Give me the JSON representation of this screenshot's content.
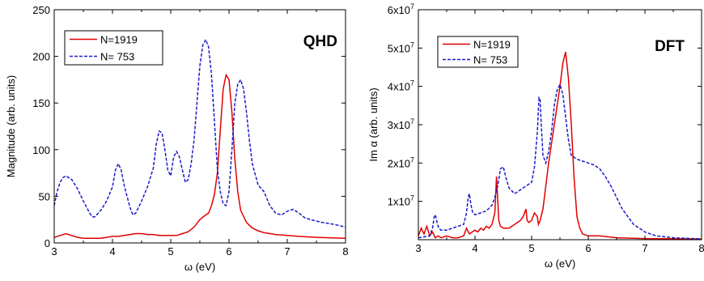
{
  "chart_data": [
    {
      "type": "line",
      "tag": "QHD",
      "xlabel": "ω (eV)",
      "ylabel": "Magnitude (arb. units)",
      "xlim": [
        3,
        8
      ],
      "ylim": [
        0,
        250
      ],
      "xticks": [
        "3",
        "4",
        "5",
        "6",
        "7",
        "8"
      ],
      "yticks": [
        "0",
        "50",
        "100",
        "150",
        "200",
        "250"
      ],
      "legend_position": "top-left",
      "series": [
        {
          "name": "N=1919",
          "color": "#e00000",
          "style": "solid",
          "x": [
            3.0,
            3.1,
            3.2,
            3.3,
            3.4,
            3.5,
            3.6,
            3.7,
            3.8,
            3.9,
            4.0,
            4.1,
            4.2,
            4.3,
            4.4,
            4.5,
            4.6,
            4.7,
            4.8,
            4.9,
            5.0,
            5.1,
            5.2,
            5.3,
            5.4,
            5.5,
            5.6,
            5.65,
            5.7,
            5.75,
            5.8,
            5.85,
            5.9,
            5.95,
            6.0,
            6.05,
            6.1,
            6.15,
            6.2,
            6.3,
            6.4,
            6.5,
            6.6,
            6.8,
            7.0,
            7.2,
            7.5,
            8.0
          ],
          "y": [
            6,
            8,
            10,
            8,
            6,
            5,
            5,
            5,
            5,
            6,
            7,
            7,
            8,
            9,
            10,
            10,
            9,
            9,
            8,
            8,
            8,
            8,
            10,
            12,
            17,
            25,
            30,
            32,
            40,
            52,
            75,
            120,
            165,
            180,
            175,
            140,
            90,
            55,
            35,
            22,
            16,
            13,
            11,
            9,
            8,
            7,
            6,
            5
          ]
        },
        {
          "name": "N= 753",
          "color": "#1a1acc",
          "style": "dashed",
          "x": [
            3.0,
            3.05,
            3.1,
            3.15,
            3.2,
            3.3,
            3.4,
            3.5,
            3.6,
            3.65,
            3.7,
            3.8,
            3.9,
            4.0,
            4.05,
            4.1,
            4.15,
            4.2,
            4.3,
            4.35,
            4.4,
            4.5,
            4.6,
            4.7,
            4.75,
            4.8,
            4.85,
            4.9,
            4.95,
            5.0,
            5.05,
            5.1,
            5.15,
            5.2,
            5.25,
            5.3,
            5.35,
            5.4,
            5.45,
            5.5,
            5.55,
            5.6,
            5.65,
            5.7,
            5.75,
            5.8,
            5.85,
            5.9,
            5.95,
            6.0,
            6.05,
            6.1,
            6.15,
            6.2,
            6.25,
            6.3,
            6.35,
            6.4,
            6.5,
            6.6,
            6.7,
            6.8,
            6.9,
            7.0,
            7.1,
            7.2,
            7.3,
            7.4,
            7.6,
            7.8,
            8.0
          ],
          "y": [
            40,
            55,
            65,
            70,
            72,
            68,
            58,
            45,
            33,
            28,
            28,
            35,
            45,
            60,
            78,
            85,
            78,
            62,
            38,
            30,
            32,
            45,
            60,
            80,
            105,
            120,
            118,
            100,
            78,
            72,
            92,
            98,
            92,
            78,
            65,
            68,
            85,
            110,
            150,
            190,
            212,
            218,
            210,
            180,
            130,
            80,
            55,
            42,
            40,
            55,
            100,
            150,
            170,
            175,
            165,
            140,
            110,
            85,
            62,
            55,
            40,
            32,
            30,
            34,
            36,
            32,
            27,
            25,
            22,
            20,
            17
          ]
        }
      ]
    },
    {
      "type": "line",
      "tag": "DFT",
      "xlabel": "ω (eV)",
      "ylabel": "Im α (arb. units)",
      "xlim": [
        3,
        8
      ],
      "ylim": [
        0,
        60000000.0
      ],
      "xticks": [
        "3",
        "4",
        "5",
        "6",
        "7",
        "8"
      ],
      "yticks": [
        {
          "value": 10000000.0,
          "base": "1x10",
          "exp": "7"
        },
        {
          "value": 20000000.0,
          "base": "2x10",
          "exp": "7"
        },
        {
          "value": 30000000.0,
          "base": "3x10",
          "exp": "7"
        },
        {
          "value": 40000000.0,
          "base": "4x10",
          "exp": "7"
        },
        {
          "value": 50000000.0,
          "base": "5x10",
          "exp": "7"
        },
        {
          "value": 60000000.0,
          "base": "6x10",
          "exp": "7"
        }
      ],
      "legend_position": "top-left",
      "series": [
        {
          "name": "N=1919",
          "color": "#e00000",
          "style": "solid",
          "x": [
            3.0,
            3.05,
            3.1,
            3.15,
            3.2,
            3.25,
            3.3,
            3.35,
            3.4,
            3.5,
            3.6,
            3.7,
            3.8,
            3.85,
            3.9,
            3.95,
            4.0,
            4.05,
            4.1,
            4.15,
            4.2,
            4.25,
            4.3,
            4.35,
            4.38,
            4.42,
            4.45,
            4.5,
            4.6,
            4.7,
            4.8,
            4.85,
            4.9,
            4.92,
            4.95,
            5.0,
            5.05,
            5.1,
            5.12,
            5.15,
            5.2,
            5.25,
            5.3,
            5.35,
            5.4,
            5.45,
            5.5,
            5.55,
            5.6,
            5.65,
            5.7,
            5.75,
            5.8,
            5.85,
            5.9,
            6.0,
            6.2,
            6.5,
            7.0,
            8.0
          ],
          "y": [
            1000000.0,
            3000000.0,
            1500000.0,
            3500000.0,
            1000000.0,
            2000000.0,
            500000.0,
            1000000.0,
            500000.0,
            1000000.0,
            500000.0,
            500000.0,
            1000000.0,
            3000000.0,
            1500000.0,
            2000000.0,
            2500000.0,
            2000000.0,
            3000000.0,
            2500000.0,
            3500000.0,
            3000000.0,
            4000000.0,
            7000000.0,
            16500000.0,
            5000000.0,
            3500000.0,
            3000000.0,
            3000000.0,
            4000000.0,
            5000000.0,
            6000000.0,
            8000000.0,
            5000000.0,
            4500000.0,
            5000000.0,
            7000000.0,
            6000000.0,
            4000000.0,
            5000000.0,
            8000000.0,
            14000000.0,
            20000000.0,
            25000000.0,
            30000000.0,
            35000000.0,
            40000000.0,
            46000000.0,
            49000000.0,
            42000000.0,
            30000000.0,
            16000000.0,
            6000000.0,
            3000000.0,
            1500000.0,
            1000000.0,
            1000000.0,
            500000.0,
            300000.0,
            200000.0
          ]
        },
        {
          "name": "N= 753",
          "color": "#1a1acc",
          "style": "dashed",
          "x": [
            3.0,
            3.2,
            3.25,
            3.28,
            3.3,
            3.33,
            3.36,
            3.4,
            3.5,
            3.6,
            3.7,
            3.8,
            3.85,
            3.88,
            3.9,
            3.93,
            3.96,
            4.0,
            4.1,
            4.2,
            4.3,
            4.35,
            4.4,
            4.45,
            4.5,
            4.55,
            4.6,
            4.7,
            4.8,
            4.9,
            5.0,
            5.05,
            5.1,
            5.13,
            5.15,
            5.17,
            5.2,
            5.25,
            5.3,
            5.35,
            5.4,
            5.45,
            5.5,
            5.55,
            5.6,
            5.65,
            5.7,
            5.8,
            5.9,
            6.0,
            6.1,
            6.2,
            6.3,
            6.4,
            6.5,
            6.6,
            6.8,
            7.0,
            7.2,
            7.5,
            8.0
          ],
          "y": [
            500000.0,
            1000000.0,
            3000000.0,
            6000000.0,
            6500000.0,
            4500000.0,
            3000000.0,
            2500000.0,
            2500000.0,
            3000000.0,
            3500000.0,
            4000000.0,
            7000000.0,
            11000000.0,
            12000000.0,
            9000000.0,
            7000000.0,
            6500000.0,
            7000000.0,
            7500000.0,
            9000000.0,
            11000000.0,
            14000000.0,
            18500000.0,
            19000000.0,
            16000000.0,
            13500000.0,
            12000000.0,
            13000000.0,
            14000000.0,
            15000000.0,
            19000000.0,
            28000000.0,
            37000000.0,
            36500000.0,
            30000000.0,
            22000000.0,
            20000000.0,
            23000000.0,
            28000000.0,
            35000000.0,
            39000000.0,
            40500000.0,
            38000000.0,
            32000000.0,
            26000000.0,
            22000000.0,
            21000000.0,
            20500000.0,
            20000000.0,
            19500000.0,
            18500000.0,
            16500000.0,
            14000000.0,
            11000000.0,
            8000000.0,
            4000000.0,
            2000000.0,
            1000000.0,
            500000.0,
            200000.0
          ]
        }
      ]
    }
  ]
}
